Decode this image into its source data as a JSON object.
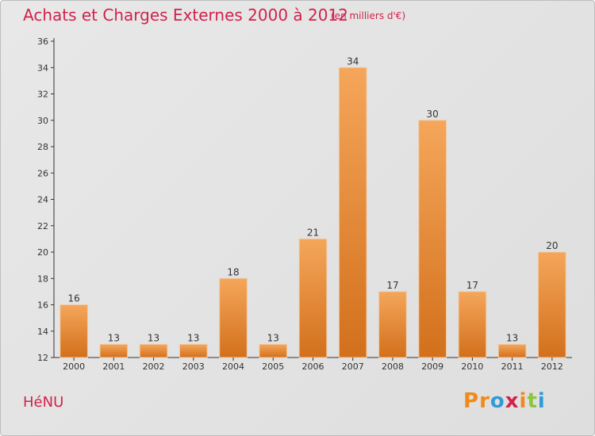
{
  "header": {
    "title": "Achats et Charges Externes 2000 à 2012",
    "subtitle": "(en milliers d'€)"
  },
  "footer": {
    "place": "HéNU",
    "brand": "Proxiti"
  },
  "colors": {
    "title": "#d2224a",
    "bar_light": "#f5a65a",
    "bar_dark": "#d2701c",
    "logo": [
      "#f08a1c",
      "#f08a1c",
      "#2f9bd7",
      "#d2224a",
      "#f08a1c",
      "#8cc63f",
      "#2f9bd7"
    ]
  },
  "chart_data": {
    "type": "bar",
    "categories": [
      "2000",
      "2001",
      "2002",
      "2003",
      "2004",
      "2005",
      "2006",
      "2007",
      "2008",
      "2009",
      "2010",
      "2011",
      "2012"
    ],
    "values": [
      16,
      13,
      13,
      13,
      18,
      13,
      21,
      34,
      17,
      30,
      17,
      13,
      20
    ],
    "ylim": [
      12,
      36
    ],
    "yticks": [
      12,
      14,
      16,
      18,
      20,
      22,
      24,
      26,
      28,
      30,
      32,
      34,
      36
    ],
    "grid": false
  }
}
